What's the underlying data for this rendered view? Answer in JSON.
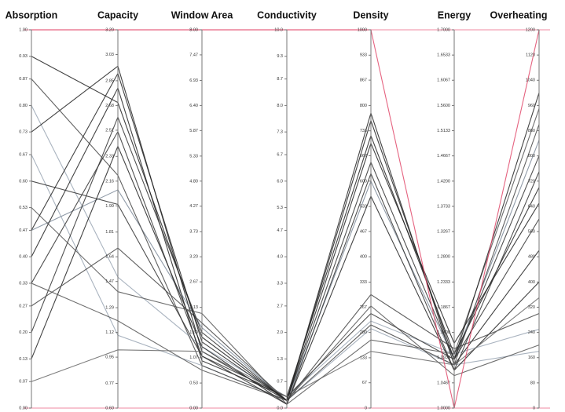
{
  "chart_data": {
    "type": "parallel",
    "axes": [
      {
        "label": "Absorption",
        "ylim": [
          0,
          1
        ],
        "yticks": [
          {
            "value": 0,
            "label": "0.00"
          },
          0.07,
          0.13,
          {
            "value": 0.2,
            "label": "0.20"
          },
          0.27,
          0.33,
          {
            "value": 0.4,
            "label": "0.40"
          },
          0.47,
          0.53,
          {
            "value": 0.6,
            "label": "0.60"
          },
          0.67,
          0.73,
          {
            "value": 0.8,
            "label": "0.80"
          },
          0.87,
          0.93,
          {
            "value": 1,
            "label": "1.00"
          }
        ]
      },
      {
        "label": "Capacity",
        "ylim": [
          0.6,
          3.2
        ],
        "yticks": [
          {
            "value": 0.6,
            "label": "0.60"
          },
          0.77,
          0.95,
          1.12,
          1.29,
          1.47,
          1.64,
          1.81,
          1.99,
          2.16,
          2.33,
          2.51,
          2.68,
          2.85,
          3.03,
          {
            "value": 3.2,
            "label": "3.20"
          }
        ]
      },
      {
        "label": "Window Area",
        "ylim": [
          0,
          8
        ],
        "yticks": [
          {
            "value": 0,
            "label": "0.00"
          },
          0.53,
          1.07,
          {
            "value": 1.6,
            "label": "1.60"
          },
          2.13,
          2.67,
          {
            "value": 3.2,
            "label": "3.20"
          },
          3.73,
          4.27,
          {
            "value": 4.8,
            "label": "4.80"
          },
          5.33,
          5.87,
          {
            "value": 6.4,
            "label": "6.40"
          },
          6.93,
          7.47,
          {
            "value": 8,
            "label": "8.00"
          }
        ]
      },
      {
        "label": "Conductivity",
        "ylim": [
          0,
          10
        ],
        "yticks": [
          {
            "value": 0,
            "label": "0.0"
          },
          0.7,
          1.3,
          {
            "value": 2,
            "label": "2.0"
          },
          2.7,
          3.3,
          {
            "value": 4,
            "label": "4.0"
          },
          4.7,
          5.3,
          {
            "value": 6,
            "label": "6.0"
          },
          6.7,
          7.3,
          {
            "value": 8,
            "label": "8.0"
          },
          8.7,
          9.3,
          {
            "value": 10,
            "label": "10.0"
          }
        ]
      },
      {
        "label": "Density",
        "ylim": [
          0,
          1000
        ],
        "yticks": [
          0,
          67,
          133,
          200,
          267,
          333,
          400,
          467,
          533,
          600,
          667,
          733,
          800,
          867,
          933,
          1000
        ]
      },
      {
        "label": "Energy",
        "ylim": [
          1,
          1.7
        ],
        "yticks": [
          {
            "value": 1,
            "label": "1.0000"
          },
          1.0467,
          1.0933,
          {
            "value": 1.14,
            "label": "1.1400"
          },
          1.1867,
          1.2333,
          {
            "value": 1.28,
            "label": "1.2800"
          },
          1.3267,
          1.3733,
          {
            "value": 1.42,
            "label": "1.4200"
          },
          1.4667,
          1.5133,
          {
            "value": 1.56,
            "label": "1.5600"
          },
          1.6067,
          1.6533,
          {
            "value": 1.7,
            "label": "1.7000"
          }
        ]
      },
      {
        "label": "Overheating",
        "ylim": [
          0,
          1200
        ],
        "yticks": [
          0,
          80,
          160,
          240,
          320,
          400,
          480,
          560,
          640,
          720,
          800,
          880,
          960,
          1040,
          1120,
          1200
        ]
      }
    ],
    "series": [
      {
        "color": "#9aa6b4",
        "values": [
          0.8,
          1.5,
          1.3,
          0.3,
          230,
          1.1,
          250
        ]
      },
      {
        "color": "#9aa6b4",
        "values": [
          0.67,
          1.1,
          0.9,
          0.2,
          210,
          1.08,
          180
        ]
      },
      {
        "color": "#7d8a99",
        "values": [
          0.47,
          2.1,
          1.7,
          0.2,
          600,
          1.09,
          850
        ]
      },
      {
        "color": "#222222",
        "values": [
          0.73,
          2.95,
          1.2,
          0.2,
          780,
          1.08,
          500
        ]
      },
      {
        "color": "#222222",
        "values": [
          0.4,
          2.8,
          1.0,
          0.3,
          720,
          1.1,
          700
        ]
      },
      {
        "color": "#333333",
        "values": [
          0.2,
          2.6,
          1.6,
          0.2,
          650,
          1.09,
          800
        ]
      },
      {
        "color": "#222222",
        "values": [
          0.13,
          2.4,
          1.3,
          0.1,
          560,
          1.07,
          400
        ]
      },
      {
        "color": "#444444",
        "values": [
          0.87,
          2.2,
          0.9,
          0.2,
          300,
          1.11,
          300
        ]
      },
      {
        "color": "#333333",
        "values": [
          0.6,
          2.0,
          1.1,
          0.3,
          250,
          1.09,
          600
        ]
      },
      {
        "color": "#444444",
        "values": [
          0.27,
          1.7,
          1.8,
          0.2,
          220,
          1.08,
          900
        ]
      },
      {
        "color": "#555555",
        "values": [
          0.53,
          1.4,
          2.0,
          0.1,
          180,
          1.1,
          950
        ]
      },
      {
        "color": "#555555",
        "values": [
          0.33,
          1.2,
          0.8,
          0.2,
          270,
          1.06,
          200
        ]
      },
      {
        "color": "#222222",
        "values": [
          0.47,
          2.9,
          1.4,
          0.2,
          760,
          1.09,
          1000
        ]
      },
      {
        "color": "#666666",
        "values": [
          0.07,
          1.0,
          1.2,
          0.3,
          150,
          1.08,
          350
        ]
      },
      {
        "color": "#222222",
        "values": [
          0.93,
          2.7,
          1.5,
          0.2,
          700,
          1.12,
          650
        ]
      },
      {
        "color": "#333333",
        "values": [
          0.33,
          2.5,
          1.1,
          0.1,
          620,
          1.07,
          750
        ]
      },
      {
        "color": "#e0486a",
        "values": [
          1,
          3.2,
          8,
          10,
          1000,
          1,
          1200
        ]
      }
    ]
  }
}
